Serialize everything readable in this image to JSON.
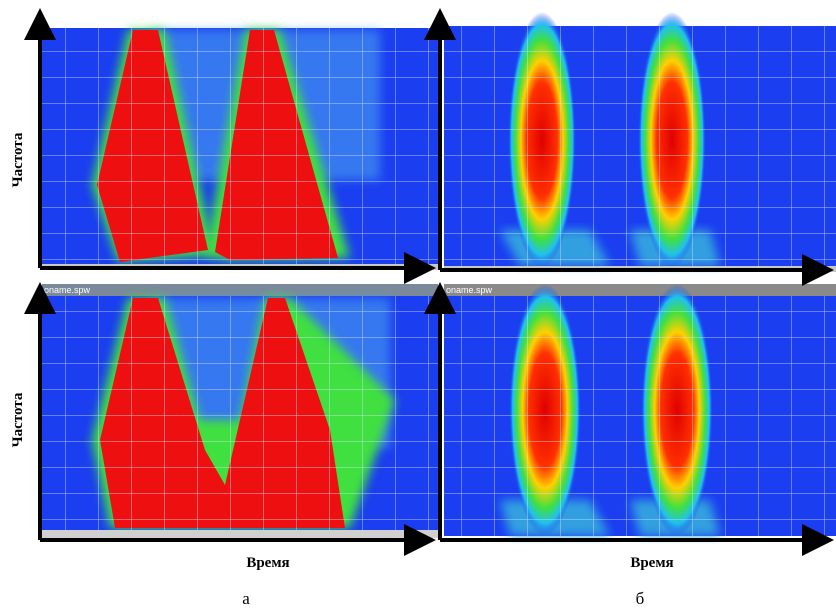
{
  "panels": [
    {
      "window_title": "oname.spw"
    },
    {
      "window_title": "oname.spw"
    }
  ],
  "y_labels": [
    "Частота",
    "Частота"
  ],
  "x_labels": [
    "Время",
    "Время"
  ],
  "captions": [
    "а",
    "б"
  ]
}
